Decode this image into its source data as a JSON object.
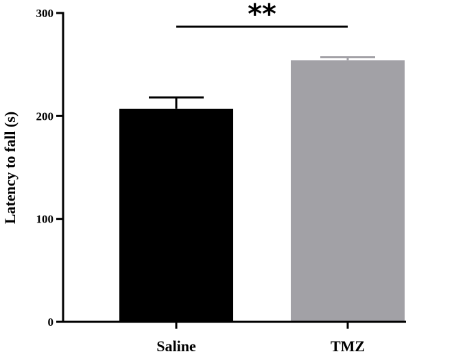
{
  "chart_data": {
    "type": "bar",
    "categories": [
      "Saline",
      "TMZ"
    ],
    "values": [
      207,
      254
    ],
    "errors": [
      11,
      3
    ],
    "colors": [
      "#000000",
      "#a2a1a6"
    ],
    "xlabel": "",
    "ylabel": "Latency to fall (s)",
    "ylim": [
      0,
      300
    ],
    "yticks": [
      0,
      100,
      200,
      300
    ],
    "ytick_labels": [
      "0",
      "100",
      "200",
      "300"
    ],
    "grid": false,
    "significance": {
      "label": "**",
      "between": [
        "Saline",
        "TMZ"
      ]
    }
  }
}
